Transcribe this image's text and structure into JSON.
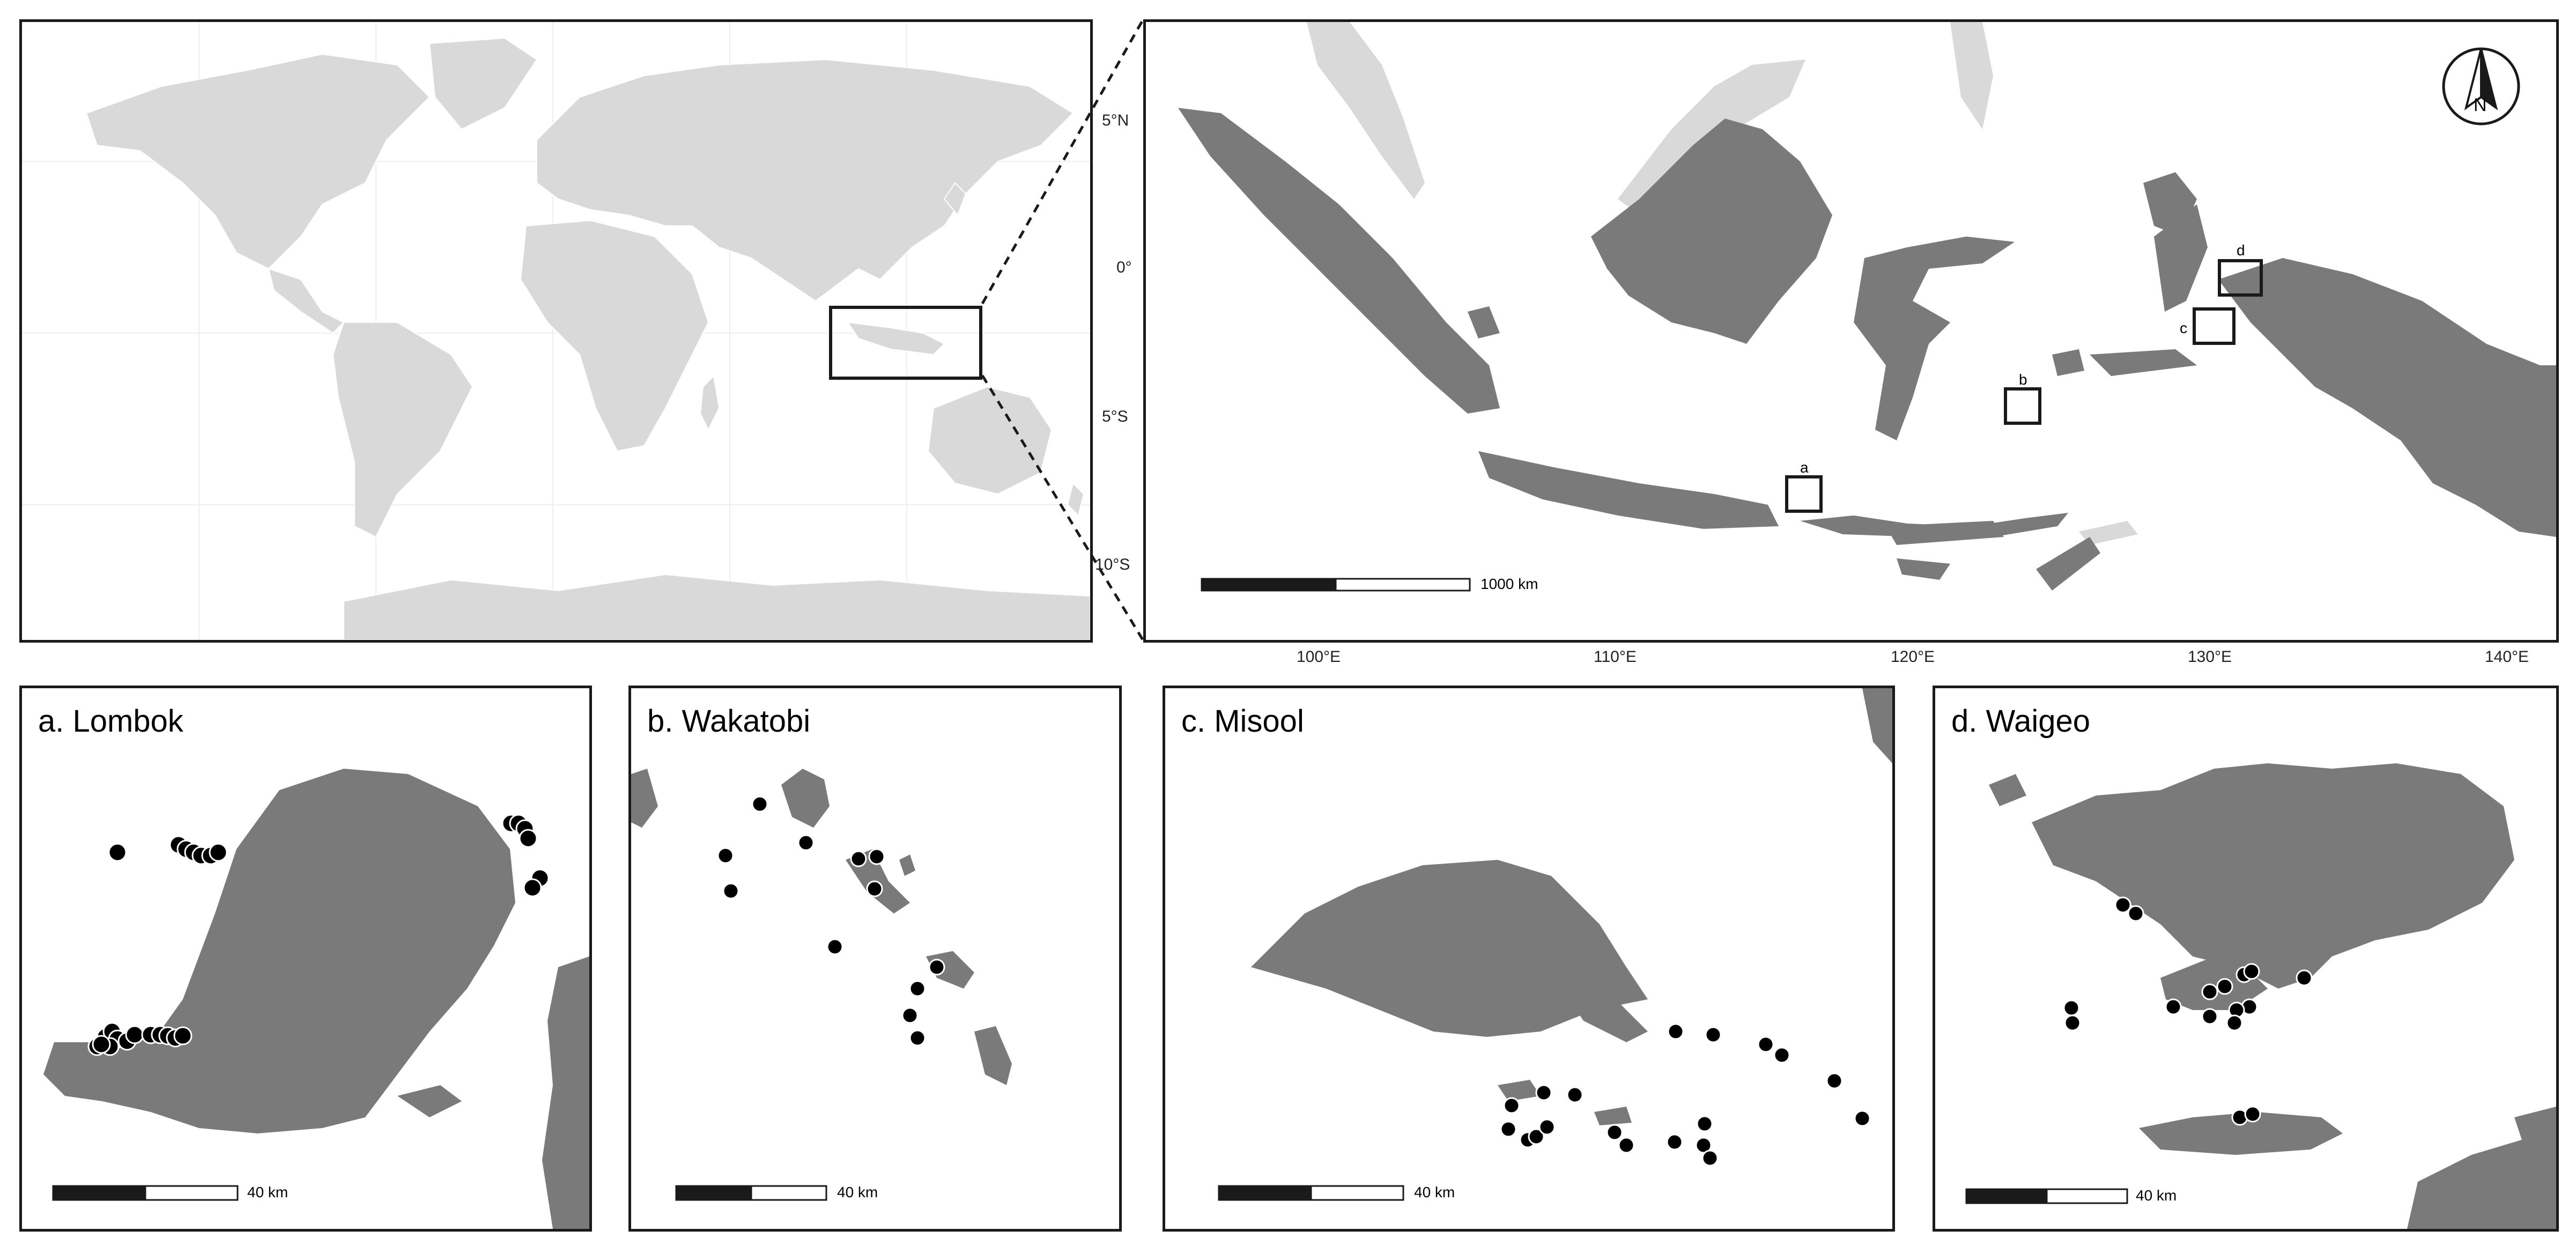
{
  "colors": {
    "land_world": "#d9d9d9",
    "land_indonesia": "#7a7a7a",
    "land_neighbors": "#d9d9d9",
    "frame": "#1a1a1a",
    "site_dot": "#000000"
  },
  "overview": {
    "lat_ticks": [
      "5°N",
      "0°",
      "5°S",
      "10°S"
    ],
    "lon_ticks": [
      "100°E",
      "110°E",
      "120°E",
      "130°E",
      "140°E"
    ],
    "scale_label": "1000 km",
    "north_arrow": "N",
    "inset_markers": [
      "a",
      "b",
      "c",
      "d"
    ]
  },
  "panels": [
    {
      "id": "a",
      "title": "a. Lombok",
      "scale_label": "40 km"
    },
    {
      "id": "b",
      "title": "b. Wakatobi",
      "scale_label": "40 km"
    },
    {
      "id": "c",
      "title": "c. Misool",
      "scale_label": "40 km"
    },
    {
      "id": "d",
      "title": "d. Waigeo",
      "scale_label": "40 km"
    }
  ],
  "icons": {
    "north": "north-arrow-icon",
    "site": "site-dot-icon"
  }
}
